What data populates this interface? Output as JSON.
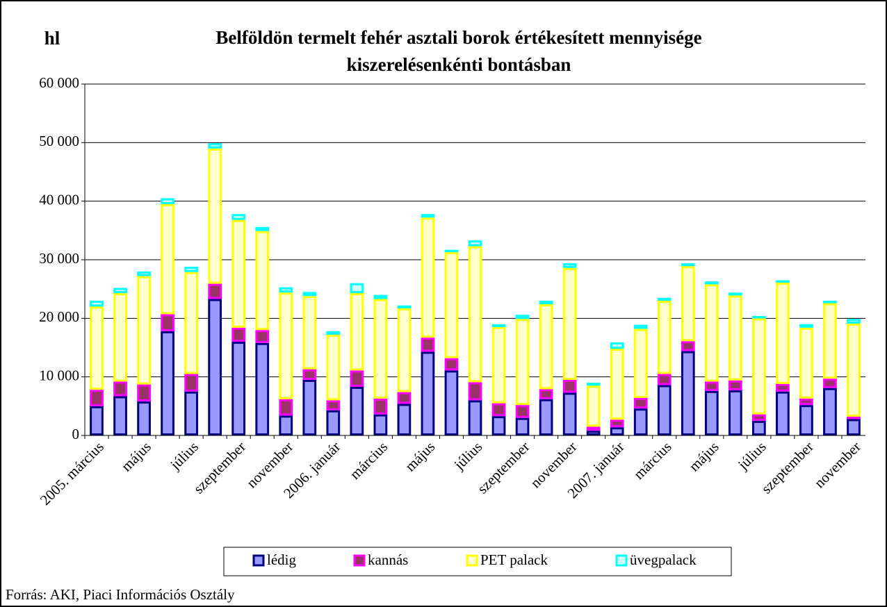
{
  "chart_data": {
    "type": "stacked_bar",
    "title": [
      "Belföldön termelt fehér asztali borok értékesített mennyisége",
      "kiszerelésenkénti bontásban"
    ],
    "y_label": "hl",
    "source": "Forrás: AKI, Piaci Információs Osztály",
    "categories": [
      "2005. március",
      null,
      "május",
      null,
      "július",
      null,
      "szeptember",
      null,
      "november",
      null,
      "2006. január",
      null,
      "március",
      null,
      "május",
      null,
      "július",
      null,
      "szeptember",
      null,
      "november",
      null,
      "2007. január",
      null,
      "március",
      null,
      "május",
      null,
      "július",
      null,
      "szeptember",
      null,
      "november"
    ],
    "series": [
      {
        "name": "lédig",
        "color": "#9999ff",
        "border": "#000080",
        "values": [
          5000,
          6700,
          5800,
          17800,
          7500,
          23300,
          16000,
          15800,
          3400,
          9500,
          4300,
          8300,
          3600,
          5400,
          14300,
          11100,
          6000,
          3300,
          3000,
          6200,
          7300,
          800,
          1400,
          4600,
          8600,
          14400,
          7600,
          7700,
          2500,
          7500,
          5200,
          8100,
          2800
        ]
      },
      {
        "name": "kannás",
        "color": "#993366",
        "border": "#ff00ff",
        "values": [
          2800,
          2500,
          2900,
          2900,
          3000,
          2600,
          2400,
          2200,
          2800,
          1800,
          1700,
          2800,
          2700,
          2000,
          2400,
          2100,
          3100,
          2200,
          2200,
          1700,
          2200,
          700,
          1300,
          1800,
          1900,
          1700,
          1600,
          1700,
          1100,
          1300,
          1100,
          1600,
          400
        ]
      },
      {
        "name": "PET palack",
        "color": "#ffffcc",
        "border": "#ffff00",
        "values": [
          14200,
          15100,
          18500,
          18800,
          17400,
          23100,
          18400,
          16900,
          18200,
          12500,
          11200,
          13200,
          17000,
          14300,
          20500,
          18100,
          23200,
          13000,
          14700,
          14500,
          19100,
          7000,
          12100,
          11800,
          12500,
          12800,
          16600,
          14500,
          16400,
          17300,
          12100,
          12900,
          15900
        ]
      },
      {
        "name": "üvegpalack",
        "color": "#ccffff",
        "border": "#00ffff",
        "values": [
          1000,
          900,
          800,
          1000,
          900,
          900,
          1000,
          700,
          900,
          700,
          600,
          1700,
          700,
          500,
          600,
          400,
          1000,
          500,
          700,
          600,
          800,
          500,
          1100,
          700,
          500,
          500,
          500,
          500,
          400,
          400,
          600,
          400,
          800
        ]
      }
    ],
    "ylim": [
      0,
      60000
    ],
    "yticks": [
      0,
      {
        "value": 10000,
        "label": "10 000"
      },
      {
        "value": 20000,
        "label": "20 000"
      },
      {
        "value": 30000,
        "label": "30 000"
      },
      {
        "value": 40000,
        "label": "40 000"
      },
      {
        "value": 50000,
        "label": "50 000"
      },
      {
        "value": 60000,
        "label": "60 000"
      }
    ],
    "grid": true,
    "legend": "bottom"
  }
}
